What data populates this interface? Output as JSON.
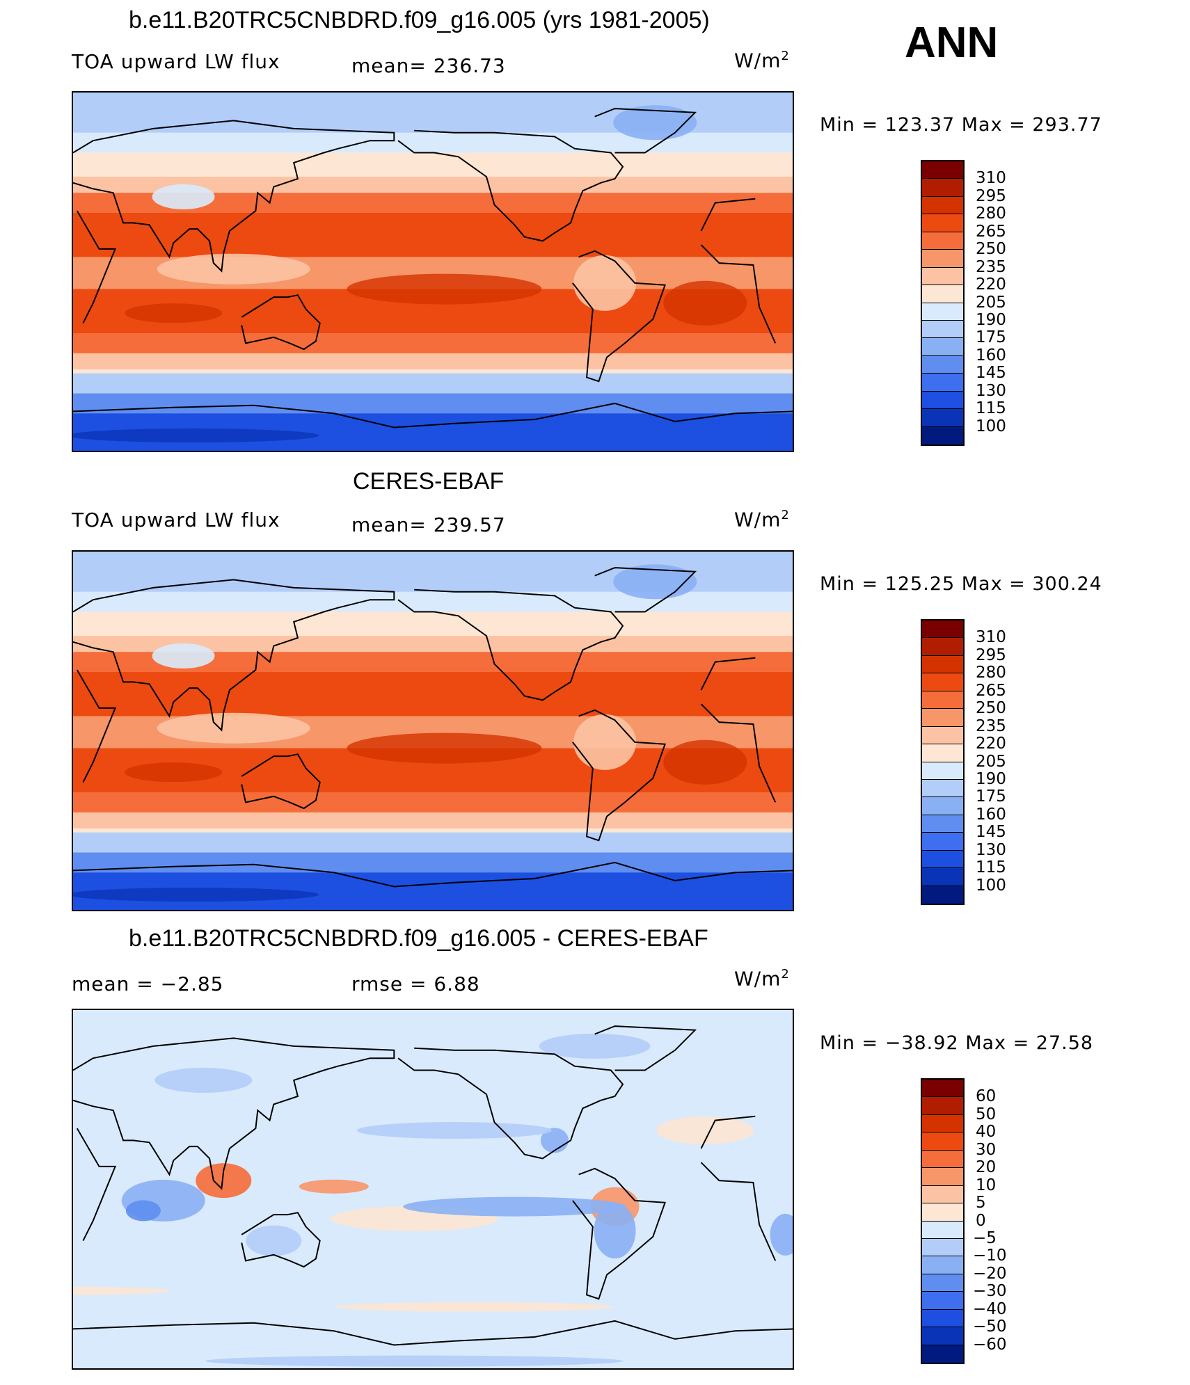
{
  "season_label": "ANN",
  "panels": [
    {
      "title": "b.e11.B20TRC5CNBDRD.f09_g16.005 (yrs 1981-2005)",
      "left_label": "TOA upward LW flux",
      "center_label": "mean=  236.73",
      "units_base": "W/m",
      "units_exp": "2",
      "minmax": "Min  =  123.37  Max  =  293.77",
      "colorbar_labels": [
        "310",
        "295",
        "280",
        "265",
        "250",
        "235",
        "220",
        "205",
        "190",
        "175",
        "160",
        "145",
        "130",
        "115",
        "100"
      ],
      "colorbar_colors": [
        "#7a0000",
        "#b01d00",
        "#d43300",
        "#ec4a10",
        "#f56d3a",
        "#f79669",
        "#fbc3a3",
        "#fde6d3",
        "#d9eafc",
        "#b2cdf8",
        "#8ab0f4",
        "#5f8ef0",
        "#3d6ff0",
        "#1d4fe0",
        "#0a34b8",
        "#001a80"
      ],
      "map_kind": "field"
    },
    {
      "title": "CERES-EBAF",
      "left_label": "TOA upward LW flux",
      "center_label": "mean=  239.57",
      "units_base": "W/m",
      "units_exp": "2",
      "minmax": "Min  =  125.25  Max  =  300.24",
      "colorbar_labels": [
        "310",
        "295",
        "280",
        "265",
        "250",
        "235",
        "220",
        "205",
        "190",
        "175",
        "160",
        "145",
        "130",
        "115",
        "100"
      ],
      "colorbar_colors": [
        "#7a0000",
        "#b01d00",
        "#d43300",
        "#ec4a10",
        "#f56d3a",
        "#f79669",
        "#fbc3a3",
        "#fde6d3",
        "#d9eafc",
        "#b2cdf8",
        "#8ab0f4",
        "#5f8ef0",
        "#3d6ff0",
        "#1d4fe0",
        "#0a34b8",
        "#001a80"
      ],
      "map_kind": "field"
    },
    {
      "title": "b.e11.B20TRC5CNBDRD.f09_g16.005 - CERES-EBAF",
      "left_label": "mean  =    −2.85",
      "center_label": "rmse  =     6.88",
      "units_base": "W/m",
      "units_exp": "2",
      "minmax": "Min  =  −38.92  Max  =    27.58",
      "colorbar_labels": [
        "60",
        "50",
        "40",
        "30",
        "20",
        "10",
        "5",
        "0",
        "−5",
        "−10",
        "−20",
        "−30",
        "−40",
        "−50",
        "−60"
      ],
      "colorbar_colors": [
        "#7a0000",
        "#b01d00",
        "#d43300",
        "#ec4a10",
        "#f56d3a",
        "#f79669",
        "#fbc3a3",
        "#fde6d3",
        "#d9eafc",
        "#b2cdf8",
        "#8ab0f4",
        "#5f8ef0",
        "#3d6ff0",
        "#1d4fe0",
        "#0a34b8",
        "#001a80"
      ],
      "map_kind": "diff"
    }
  ]
}
